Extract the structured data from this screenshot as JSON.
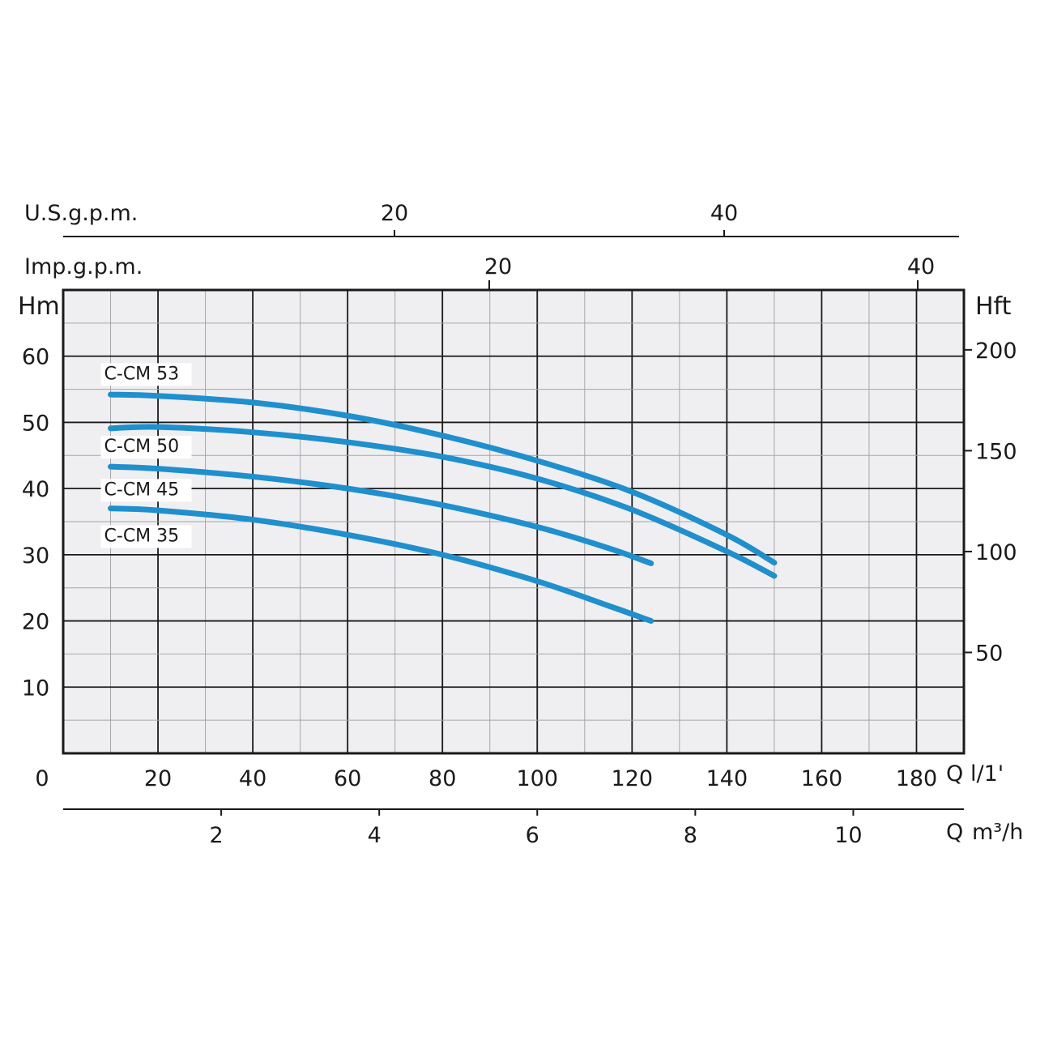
{
  "chart_data": {
    "type": "line",
    "title": "",
    "x_primary": {
      "label": "Q l/1'",
      "unit_label_parts": [
        "Q",
        "l/1'"
      ],
      "range": [
        0,
        190
      ],
      "ticks": [
        0,
        20,
        40,
        60,
        80,
        100,
        120,
        140,
        160,
        180
      ],
      "tick_labels": [
        "0",
        "20",
        "40",
        "60",
        "80",
        "100",
        "120",
        "140",
        "160",
        "180"
      ]
    },
    "x_secondary_m3h": {
      "label": "Q m³/h",
      "unit_label_parts": [
        "Q",
        "m³/h"
      ],
      "ticks": [
        2,
        4,
        6,
        8,
        10
      ],
      "tick_labels": [
        "2",
        "4",
        "6",
        "8",
        "10"
      ]
    },
    "x_top_imp_gpm": {
      "label": "Imp.g.p.m.",
      "ticks": [
        20,
        40
      ],
      "tick_labels": [
        "20",
        "40"
      ]
    },
    "x_top_us_gpm": {
      "label": "U.S.g.p.m.",
      "ticks": [
        20,
        40
      ],
      "tick_labels": [
        "20",
        "40"
      ]
    },
    "y_left": {
      "label": "Hm",
      "range": [
        0,
        70
      ],
      "ticks": [
        10,
        20,
        30,
        40,
        50,
        60
      ],
      "tick_labels": [
        "10",
        "20",
        "30",
        "40",
        "50",
        "60"
      ]
    },
    "y_right": {
      "label": "Hft",
      "ticks": [
        50,
        100,
        150,
        200
      ],
      "tick_labels": [
        "50",
        "100",
        "150",
        "200"
      ]
    },
    "grid": true,
    "series": [
      {
        "name": "C-CM 53",
        "color": "#1f8fce",
        "points": [
          [
            10,
            54.2
          ],
          [
            20,
            54.0
          ],
          [
            40,
            53.0
          ],
          [
            60,
            51.0
          ],
          [
            80,
            48.0
          ],
          [
            100,
            44.2
          ],
          [
            120,
            39.5
          ],
          [
            140,
            33.0
          ],
          [
            150,
            28.8
          ]
        ]
      },
      {
        "name": "C-CM 50",
        "color": "#1f8fce",
        "points": [
          [
            10,
            49.1
          ],
          [
            20,
            49.3
          ],
          [
            40,
            48.5
          ],
          [
            60,
            47.0
          ],
          [
            80,
            44.8
          ],
          [
            100,
            41.5
          ],
          [
            120,
            36.8
          ],
          [
            140,
            30.5
          ],
          [
            150,
            26.8
          ]
        ]
      },
      {
        "name": "C-CM 45",
        "color": "#1f8fce",
        "points": [
          [
            10,
            43.3
          ],
          [
            20,
            43.0
          ],
          [
            40,
            41.8
          ],
          [
            60,
            40.0
          ],
          [
            80,
            37.5
          ],
          [
            100,
            34.2
          ],
          [
            115,
            31.0
          ],
          [
            124,
            28.7
          ]
        ]
      },
      {
        "name": "C-CM 35",
        "color": "#1f8fce",
        "points": [
          [
            10,
            37.0
          ],
          [
            20,
            36.7
          ],
          [
            40,
            35.3
          ],
          [
            60,
            33.0
          ],
          [
            80,
            30.0
          ],
          [
            100,
            26.0
          ],
          [
            115,
            22.3
          ],
          [
            124,
            20.0
          ]
        ]
      }
    ],
    "series_label_positions_data": {
      "C-CM 53": [
        10,
        56.5
      ],
      "C-CM 50": [
        10,
        45.5
      ],
      "C-CM 45": [
        10,
        39.0
      ],
      "C-CM 35": [
        10,
        32.0
      ]
    }
  }
}
